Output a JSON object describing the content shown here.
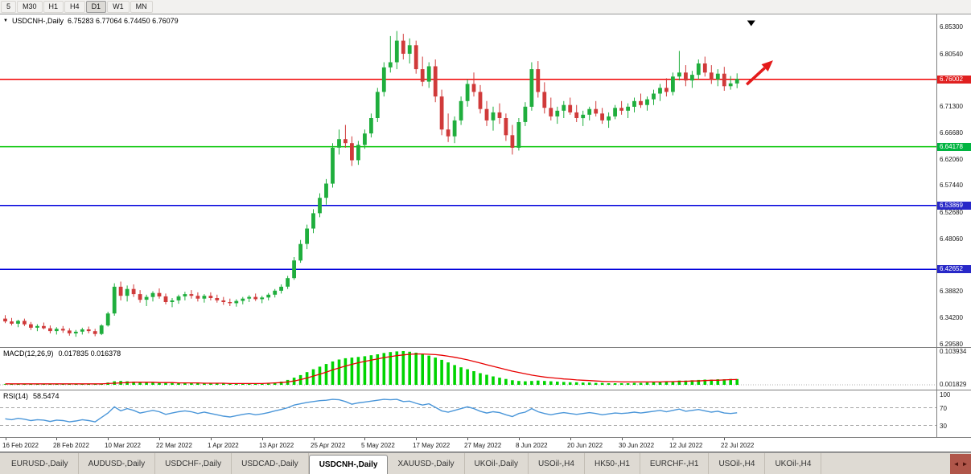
{
  "toolbar": {
    "buttons": [
      "5",
      "M30",
      "H1",
      "H4",
      "D1",
      "W1",
      "MN"
    ],
    "active": "D1"
  },
  "icons": {
    "dropdown_triangle": "▼",
    "scroll_left": "◄",
    "scroll_right": "►"
  },
  "colors": {
    "candle_up": "#1fae3d",
    "candle_down": "#d03a3a",
    "macd_hist": "#00d400",
    "macd_signal": "#e80000",
    "rsi_line": "#4a96d9"
  },
  "chart_data": {
    "type": "candlestick",
    "symbol_title": "USDCNH-,Daily",
    "ohlc_text": "6.75283 6.77064 6.74450 6.76079",
    "ohlc": {
      "open": 6.75283,
      "high": 6.77064,
      "low": 6.7445,
      "close": 6.76079
    },
    "price_range": [
      6.29,
      6.874
    ],
    "price_axis": {
      "ticks": [
        "6.85300",
        "6.80540",
        "6.71300",
        "6.66680",
        "6.62060",
        "6.57440",
        "6.52680",
        "6.48060",
        "6.38820",
        "6.34200",
        "6.29580"
      ],
      "badges": [
        {
          "value": "6.76002",
          "color": "#e02020"
        },
        {
          "value": "6.64178",
          "color": "#00b440"
        },
        {
          "value": "6.53869",
          "color": "#2828c8"
        },
        {
          "value": "6.42652",
          "color": "#2828c8"
        }
      ]
    },
    "hlines": [
      {
        "price": 6.76002,
        "color": "#f00000"
      },
      {
        "price": 6.64178,
        "color": "#00c400"
      },
      {
        "price": 6.53869,
        "color": "#0000dc"
      },
      {
        "price": 6.42652,
        "color": "#0000dc"
      }
    ],
    "annotations": {
      "trend_arrow": {
        "from_index": 115.5,
        "from_price": 6.751,
        "to_index": 119.6,
        "to_price": 6.7935,
        "color": "#e41b1b"
      },
      "top_marker": {
        "index": 116.2,
        "price": 6.8635,
        "color": "#000000"
      }
    },
    "candles": [
      [
        6.34,
        6.346,
        6.332,
        6.335
      ],
      [
        6.335,
        6.341,
        6.328,
        6.331
      ],
      [
        6.331,
        6.338,
        6.325,
        6.336
      ],
      [
        6.336,
        6.34,
        6.327,
        6.33
      ],
      [
        6.33,
        6.334,
        6.32,
        6.324
      ],
      [
        6.324,
        6.33,
        6.318,
        6.327
      ],
      [
        6.327,
        6.333,
        6.321,
        6.323
      ],
      [
        6.323,
        6.328,
        6.314,
        6.318
      ],
      [
        6.318,
        6.325,
        6.312,
        6.322
      ],
      [
        6.322,
        6.327,
        6.315,
        6.319
      ],
      [
        6.319,
        6.323,
        6.31,
        6.314
      ],
      [
        6.314,
        6.32,
        6.308,
        6.317
      ],
      [
        6.317,
        6.324,
        6.312,
        6.321
      ],
      [
        6.321,
        6.326,
        6.314,
        6.318
      ],
      [
        6.318,
        6.322,
        6.309,
        6.313
      ],
      [
        6.313,
        6.33,
        6.311,
        6.328
      ],
      [
        6.328,
        6.352,
        6.326,
        6.349
      ],
      [
        6.349,
        6.402,
        6.345,
        6.396
      ],
      [
        6.396,
        6.405,
        6.372,
        6.38
      ],
      [
        6.38,
        6.398,
        6.37,
        6.392
      ],
      [
        6.392,
        6.4,
        6.378,
        6.383
      ],
      [
        6.383,
        6.39,
        6.368,
        6.373
      ],
      [
        6.373,
        6.382,
        6.362,
        6.378
      ],
      [
        6.378,
        6.388,
        6.37,
        6.385
      ],
      [
        6.385,
        6.393,
        6.375,
        6.379
      ],
      [
        6.379,
        6.384,
        6.365,
        6.369
      ],
      [
        6.369,
        6.376,
        6.36,
        6.372
      ],
      [
        6.372,
        6.382,
        6.366,
        6.379
      ],
      [
        6.379,
        6.387,
        6.372,
        6.383
      ],
      [
        6.383,
        6.39,
        6.375,
        6.38
      ],
      [
        6.38,
        6.386,
        6.37,
        6.375
      ],
      [
        6.375,
        6.383,
        6.368,
        6.38
      ],
      [
        6.38,
        6.386,
        6.372,
        6.376
      ],
      [
        6.376,
        6.382,
        6.368,
        6.372
      ],
      [
        6.372,
        6.378,
        6.364,
        6.369
      ],
      [
        6.369,
        6.375,
        6.362,
        6.367
      ],
      [
        6.367,
        6.374,
        6.361,
        6.371
      ],
      [
        6.371,
        6.378,
        6.365,
        6.375
      ],
      [
        6.375,
        6.381,
        6.369,
        6.378
      ],
      [
        6.378,
        6.384,
        6.371,
        6.374
      ],
      [
        6.374,
        6.38,
        6.367,
        6.377
      ],
      [
        6.377,
        6.385,
        6.372,
        6.382
      ],
      [
        6.382,
        6.392,
        6.377,
        6.389
      ],
      [
        6.389,
        6.4,
        6.384,
        6.396
      ],
      [
        6.396,
        6.415,
        6.392,
        6.411
      ],
      [
        6.411,
        6.448,
        6.408,
        6.442
      ],
      [
        6.442,
        6.478,
        6.438,
        6.471
      ],
      [
        6.471,
        6.505,
        6.462,
        6.498
      ],
      [
        6.498,
        6.532,
        6.49,
        6.525
      ],
      [
        6.525,
        6.56,
        6.518,
        6.552
      ],
      [
        6.552,
        6.585,
        6.54,
        6.577
      ],
      [
        6.577,
        6.648,
        6.57,
        6.64
      ],
      [
        6.64,
        6.672,
        6.628,
        6.655
      ],
      [
        6.655,
        6.68,
        6.64,
        6.648
      ],
      [
        6.648,
        6.66,
        6.608,
        6.618
      ],
      [
        6.618,
        6.652,
        6.61,
        6.645
      ],
      [
        6.645,
        6.672,
        6.638,
        6.665
      ],
      [
        6.665,
        6.7,
        6.658,
        6.692
      ],
      [
        6.692,
        6.745,
        6.685,
        6.738
      ],
      [
        6.738,
        6.79,
        6.73,
        6.781
      ],
      [
        6.781,
        6.836,
        6.772,
        6.79
      ],
      [
        6.79,
        6.845,
        6.778,
        6.828
      ],
      [
        6.828,
        6.84,
        6.795,
        6.805
      ],
      [
        6.805,
        6.832,
        6.788,
        6.82
      ],
      [
        6.82,
        6.828,
        6.77,
        6.778
      ],
      [
        6.778,
        6.8,
        6.748,
        6.756
      ],
      [
        6.756,
        6.79,
        6.745,
        6.783
      ],
      [
        6.783,
        6.795,
        6.72,
        6.73
      ],
      [
        6.73,
        6.742,
        6.662,
        6.672
      ],
      [
        6.672,
        6.7,
        6.65,
        6.66
      ],
      [
        6.66,
        6.695,
        6.648,
        6.688
      ],
      [
        6.688,
        6.73,
        6.68,
        6.722
      ],
      [
        6.722,
        6.76,
        6.712,
        6.752
      ],
      [
        6.752,
        6.772,
        6.73,
        6.738
      ],
      [
        6.738,
        6.75,
        6.7,
        6.708
      ],
      [
        6.708,
        6.722,
        6.678,
        6.688
      ],
      [
        6.688,
        6.712,
        6.67,
        6.702
      ],
      [
        6.702,
        6.718,
        6.682,
        6.692
      ],
      [
        6.692,
        6.7,
        6.652,
        6.662
      ],
      [
        6.662,
        6.68,
        6.628,
        6.64
      ],
      [
        6.64,
        6.692,
        6.635,
        6.685
      ],
      [
        6.685,
        6.72,
        6.678,
        6.712
      ],
      [
        6.712,
        6.79,
        6.705,
        6.778
      ],
      [
        6.778,
        6.792,
        6.728,
        6.738
      ],
      [
        6.738,
        6.755,
        6.7,
        6.71
      ],
      [
        6.71,
        6.728,
        6.688,
        6.695
      ],
      [
        6.695,
        6.712,
        6.682,
        6.705
      ],
      [
        6.705,
        6.722,
        6.692,
        6.715
      ],
      [
        6.715,
        6.728,
        6.698,
        6.702
      ],
      [
        6.702,
        6.715,
        6.685,
        6.692
      ],
      [
        6.692,
        6.705,
        6.678,
        6.698
      ],
      [
        6.698,
        6.712,
        6.688,
        6.708
      ],
      [
        6.708,
        6.722,
        6.695,
        6.7
      ],
      [
        6.7,
        6.71,
        6.682,
        6.688
      ],
      [
        6.688,
        6.702,
        6.675,
        6.695
      ],
      [
        6.695,
        6.715,
        6.69,
        6.71
      ],
      [
        6.71,
        6.722,
        6.698,
        6.705
      ],
      [
        6.705,
        6.718,
        6.692,
        6.712
      ],
      [
        6.712,
        6.728,
        6.702,
        6.722
      ],
      [
        6.722,
        6.735,
        6.71,
        6.715
      ],
      [
        6.715,
        6.73,
        6.705,
        6.725
      ],
      [
        6.725,
        6.742,
        6.715,
        6.735
      ],
      [
        6.735,
        6.752,
        6.722,
        6.745
      ],
      [
        6.745,
        6.762,
        6.73,
        6.738
      ],
      [
        6.738,
        6.772,
        6.732,
        6.765
      ],
      [
        6.765,
        6.81,
        6.758,
        6.772
      ],
      [
        6.772,
        6.785,
        6.748,
        6.758
      ],
      [
        6.758,
        6.775,
        6.745,
        6.768
      ],
      [
        6.768,
        6.795,
        6.76,
        6.788
      ],
      [
        6.788,
        6.8,
        6.765,
        6.772
      ],
      [
        6.772,
        6.785,
        6.752,
        6.76
      ],
      [
        6.76,
        6.778,
        6.748,
        6.77
      ],
      [
        6.77,
        6.782,
        6.74,
        6.748
      ],
      [
        6.748,
        6.766,
        6.742,
        6.753
      ],
      [
        6.7528,
        6.7706,
        6.7445,
        6.7608
      ]
    ],
    "macd": {
      "label": "MACD(12,26,9)",
      "values_text": "0.017835 0.016378",
      "axis_ticks": [
        "0.103934",
        "0.001829"
      ],
      "max": 0.104,
      "histogram": [
        0.002,
        0.002,
        0.003,
        0.003,
        0.002,
        0.002,
        0.003,
        0.002,
        0.002,
        0.003,
        0.002,
        0.002,
        0.003,
        0.003,
        0.002,
        0.004,
        0.007,
        0.011,
        0.012,
        0.011,
        0.01,
        0.009,
        0.008,
        0.008,
        0.007,
        0.006,
        0.006,
        0.006,
        0.006,
        0.006,
        0.005,
        0.005,
        0.005,
        0.004,
        0.004,
        0.003,
        0.003,
        0.003,
        0.004,
        0.004,
        0.004,
        0.005,
        0.007,
        0.01,
        0.015,
        0.022,
        0.03,
        0.039,
        0.048,
        0.056,
        0.064,
        0.072,
        0.078,
        0.082,
        0.084,
        0.086,
        0.088,
        0.091,
        0.094,
        0.098,
        0.101,
        0.103,
        0.104,
        0.102,
        0.099,
        0.095,
        0.09,
        0.084,
        0.077,
        0.069,
        0.061,
        0.054,
        0.048,
        0.042,
        0.036,
        0.031,
        0.026,
        0.022,
        0.018,
        0.014,
        0.012,
        0.011,
        0.012,
        0.013,
        0.012,
        0.011,
        0.01,
        0.009,
        0.008,
        0.008,
        0.007,
        0.007,
        0.006,
        0.006,
        0.005,
        0.005,
        0.005,
        0.005,
        0.006,
        0.006,
        0.007,
        0.008,
        0.009,
        0.01,
        0.011,
        0.013,
        0.013,
        0.014,
        0.015,
        0.016,
        0.016,
        0.017,
        0.017,
        0.018,
        0.0178
      ],
      "signal": [
        0.003,
        0.003,
        0.003,
        0.003,
        0.003,
        0.003,
        0.003,
        0.003,
        0.003,
        0.003,
        0.003,
        0.003,
        0.003,
        0.003,
        0.003,
        0.003,
        0.004,
        0.005,
        0.006,
        0.007,
        0.008,
        0.008,
        0.008,
        0.008,
        0.007,
        0.007,
        0.007,
        0.006,
        0.006,
        0.006,
        0.006,
        0.005,
        0.005,
        0.005,
        0.005,
        0.004,
        0.004,
        0.004,
        0.004,
        0.004,
        0.004,
        0.005,
        0.006,
        0.007,
        0.009,
        0.012,
        0.016,
        0.021,
        0.027,
        0.033,
        0.039,
        0.046,
        0.052,
        0.058,
        0.063,
        0.068,
        0.072,
        0.076,
        0.08,
        0.084,
        0.087,
        0.09,
        0.092,
        0.094,
        0.095,
        0.095,
        0.094,
        0.093,
        0.091,
        0.088,
        0.085,
        0.081,
        0.077,
        0.072,
        0.067,
        0.062,
        0.057,
        0.052,
        0.047,
        0.042,
        0.038,
        0.034,
        0.03,
        0.027,
        0.024,
        0.022,
        0.02,
        0.018,
        0.017,
        0.015,
        0.014,
        0.013,
        0.012,
        0.011,
        0.01,
        0.01,
        0.009,
        0.009,
        0.009,
        0.009,
        0.009,
        0.009,
        0.009,
        0.01,
        0.01,
        0.011,
        0.011,
        0.012,
        0.012,
        0.013,
        0.014,
        0.014,
        0.015,
        0.016,
        0.0164
      ]
    },
    "rsi": {
      "label": "RSI(14)",
      "value_text": "58.5474",
      "axis_ticks": [
        "100",
        "70",
        "30"
      ],
      "levels": [
        70,
        30
      ],
      "values": [
        45,
        43,
        46,
        44,
        41,
        43,
        42,
        39,
        42,
        41,
        38,
        40,
        43,
        41,
        38,
        48,
        58,
        72,
        63,
        68,
        64,
        58,
        61,
        64,
        61,
        55,
        58,
        61,
        63,
        61,
        57,
        60,
        57,
        54,
        51,
        49,
        52,
        55,
        57,
        54,
        56,
        59,
        63,
        66,
        70,
        76,
        79,
        82,
        84,
        86,
        87,
        89,
        88,
        84,
        78,
        81,
        83,
        85,
        87,
        89,
        88,
        89,
        84,
        85,
        80,
        76,
        79,
        71,
        63,
        60,
        64,
        68,
        72,
        68,
        62,
        58,
        61,
        59,
        54,
        50,
        57,
        60,
        68,
        61,
        57,
        54,
        57,
        59,
        57,
        55,
        57,
        59,
        57,
        54,
        56,
        58,
        57,
        58,
        60,
        58,
        60,
        62,
        64,
        61,
        64,
        67,
        62,
        64,
        66,
        63,
        60,
        62,
        58,
        57,
        58.5
      ]
    },
    "dates": [
      [
        0,
        "16 Feb 2022"
      ],
      [
        8,
        "28 Feb 2022"
      ],
      [
        16,
        "10 Mar 2022"
      ],
      [
        24,
        "22 Mar 2022"
      ],
      [
        32,
        "1 Apr 2022"
      ],
      [
        40,
        "13 Apr 2022"
      ],
      [
        48,
        "25 Apr 2022"
      ],
      [
        56,
        "5 May 2022"
      ],
      [
        64,
        "17 May 2022"
      ],
      [
        72,
        "27 May 2022"
      ],
      [
        80,
        "8 Jun 2022"
      ],
      [
        88,
        "20 Jun 2022"
      ],
      [
        96,
        "30 Jun 2022"
      ],
      [
        104,
        "12 Jul 2022"
      ],
      [
        112,
        "22 Jul 2022"
      ]
    ]
  },
  "tabs": {
    "items": [
      {
        "label": "EURUSD-,Daily",
        "active": false
      },
      {
        "label": "AUDUSD-,Daily",
        "active": false
      },
      {
        "label": "USDCHF-,Daily",
        "active": false
      },
      {
        "label": "USDCAD-,Daily",
        "active": false
      },
      {
        "label": "USDCNH-,Daily",
        "active": true
      },
      {
        "label": "XAUUSD-,Daily",
        "active": false
      },
      {
        "label": "UKOil-,Daily",
        "active": false
      },
      {
        "label": "USOil-,H4",
        "active": false
      },
      {
        "label": "HK50-,H1",
        "active": false
      },
      {
        "label": "EURCHF-,H1",
        "active": false
      },
      {
        "label": "USOil-,H4",
        "active": false
      },
      {
        "label": "UKOil-,H4",
        "active": false
      }
    ]
  }
}
